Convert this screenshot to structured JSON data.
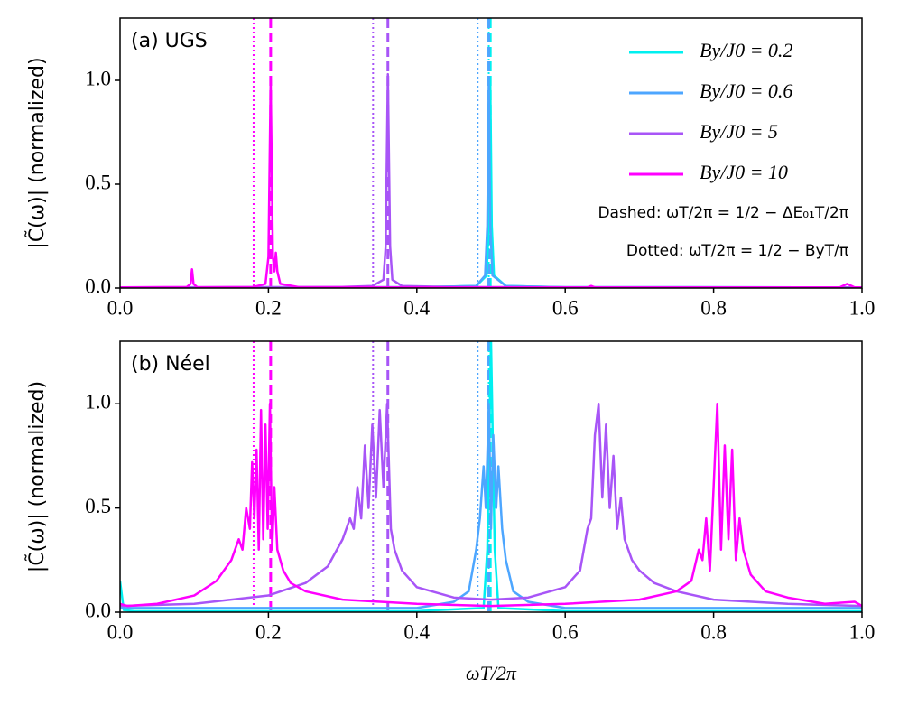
{
  "chart_data": [
    {
      "type": "line",
      "panel_label": "(a) UGS",
      "ylabel": "|C̃(ω)| (normalized)",
      "xlim": [
        0,
        1
      ],
      "ylim": [
        0,
        1.3
      ],
      "xticks": [
        {
          "value": 0,
          "label": "0.0"
        },
        0.2,
        0.4,
        0.6,
        0.8,
        {
          "value": 1,
          "label": "1.0"
        }
      ],
      "yticks": [
        {
          "value": 0,
          "label": "0.0"
        },
        0.5,
        {
          "value": 1,
          "label": "1.0"
        }
      ],
      "legend": "upper right",
      "annotations": [
        "Dashed: ωT/2π = 1/2 − ΔE₀₁T/2π",
        "Dotted: ωT/2π = 1/2 − ByT/π"
      ],
      "series": [
        {
          "name": "By/J0 = 0.2",
          "color": "#00f0f0",
          "x": [
            0,
            0.4,
            0.48,
            0.494,
            0.497,
            0.499,
            0.501,
            0.504,
            0.52,
            0.6,
            1.0
          ],
          "values": [
            0.003,
            0.004,
            0.01,
            0.06,
            0.3,
            1.0,
            0.3,
            0.06,
            0.01,
            0.004,
            0.003
          ]
        },
        {
          "name": "By/J0 = 0.6",
          "color": "#4da6ff",
          "x": [
            0,
            0.4,
            0.48,
            0.492,
            0.495,
            0.497,
            0.499,
            0.502,
            0.52,
            0.6,
            1.0
          ],
          "values": [
            0.003,
            0.004,
            0.01,
            0.06,
            0.3,
            1.0,
            0.3,
            0.06,
            0.01,
            0.004,
            0.003
          ]
        },
        {
          "name": "By/J0 = 5",
          "color": "#a855f7",
          "x": [
            0,
            0.1,
            0.3,
            0.34,
            0.355,
            0.358,
            0.361,
            0.364,
            0.367,
            0.38,
            0.45,
            0.6,
            1.0
          ],
          "values": [
            0.003,
            0.004,
            0.005,
            0.01,
            0.04,
            0.2,
            1.03,
            0.2,
            0.04,
            0.01,
            0.005,
            0.004,
            0.003
          ]
        },
        {
          "name": "By/J0 = 10",
          "color": "#ff00ff",
          "x": [
            0,
            0.09,
            0.095,
            0.097,
            0.099,
            0.104,
            0.18,
            0.196,
            0.2,
            0.203,
            0.206,
            0.208,
            0.21,
            0.212,
            0.216,
            0.24,
            0.4,
            0.63,
            0.635,
            0.64,
            0.97,
            0.98,
            0.99,
            1.0
          ],
          "values": [
            0.003,
            0.005,
            0.02,
            0.09,
            0.02,
            0.004,
            0.005,
            0.02,
            0.15,
            1.0,
            0.15,
            0.08,
            0.17,
            0.08,
            0.02,
            0.005,
            0.003,
            0.003,
            0.01,
            0.003,
            0.003,
            0.02,
            0.003,
            0.003
          ]
        }
      ],
      "reference_lines": [
        {
          "x": 0.499,
          "style": "dashed",
          "color": "#00f0f0"
        },
        {
          "x": 0.497,
          "style": "dotted",
          "color": "#00f0f0"
        },
        {
          "x": 0.497,
          "style": "dashed",
          "color": "#4da6ff"
        },
        {
          "x": 0.482,
          "style": "dotted",
          "color": "#4da6ff"
        },
        {
          "x": 0.361,
          "style": "dashed",
          "color": "#a855f7"
        },
        {
          "x": 0.341,
          "style": "dotted",
          "color": "#a855f7"
        },
        {
          "x": 0.203,
          "style": "dashed",
          "color": "#ff00ff"
        },
        {
          "x": 0.18,
          "style": "dotted",
          "color": "#ff00ff"
        }
      ]
    },
    {
      "type": "line",
      "panel_label": "(b) Néel",
      "ylabel": "|C̃(ω)| (normalized)",
      "xlabel": "ωT/2π",
      "xlim": [
        0,
        1
      ],
      "ylim": [
        0,
        1.3
      ],
      "xticks": [
        {
          "value": 0,
          "label": "0.0"
        },
        0.2,
        0.4,
        0.6,
        0.8,
        {
          "value": 1,
          "label": "1.0"
        }
      ],
      "yticks": [
        {
          "value": 0,
          "label": "0.0"
        },
        0.5,
        {
          "value": 1,
          "label": "1.0"
        }
      ],
      "series": [
        {
          "color": "#00f0f0",
          "x": [
            0,
            0.005,
            0.02,
            0.4,
            0.49,
            0.495,
            0.5,
            0.505,
            0.51,
            0.6,
            1.0
          ],
          "values": [
            0.15,
            0.01,
            0.005,
            0.005,
            0.02,
            0.3,
            1.3,
            0.3,
            0.02,
            0.005,
            0.005
          ]
        },
        {
          "color": "#4da6ff",
          "x": [
            0,
            0.2,
            0.4,
            0.45,
            0.47,
            0.48,
            0.485,
            0.49,
            0.493,
            0.497,
            0.5,
            0.503,
            0.507,
            0.51,
            0.515,
            0.52,
            0.53,
            0.55,
            0.6,
            0.8,
            1.0
          ],
          "values": [
            0.02,
            0.02,
            0.02,
            0.05,
            0.1,
            0.3,
            0.45,
            0.7,
            0.5,
            1.0,
            0.4,
            0.85,
            0.5,
            0.7,
            0.4,
            0.25,
            0.1,
            0.05,
            0.02,
            0.02,
            0.02
          ]
        },
        {
          "color": "#a855f7",
          "x": [
            0,
            0.1,
            0.2,
            0.25,
            0.28,
            0.3,
            0.31,
            0.315,
            0.32,
            0.325,
            0.33,
            0.335,
            0.34,
            0.345,
            0.35,
            0.355,
            0.36,
            0.365,
            0.37,
            0.38,
            0.4,
            0.45,
            0.5,
            0.55,
            0.6,
            0.62,
            0.63,
            0.635,
            0.64,
            0.645,
            0.65,
            0.655,
            0.66,
            0.665,
            0.67,
            0.675,
            0.68,
            0.69,
            0.7,
            0.72,
            0.75,
            0.8,
            0.9,
            1.0
          ],
          "values": [
            0.03,
            0.04,
            0.08,
            0.14,
            0.22,
            0.35,
            0.45,
            0.4,
            0.6,
            0.45,
            0.8,
            0.5,
            0.9,
            0.55,
            0.97,
            0.6,
            1.0,
            0.4,
            0.3,
            0.2,
            0.12,
            0.07,
            0.06,
            0.07,
            0.12,
            0.2,
            0.4,
            0.45,
            0.85,
            1.0,
            0.55,
            0.9,
            0.5,
            0.75,
            0.4,
            0.55,
            0.35,
            0.25,
            0.2,
            0.14,
            0.1,
            0.06,
            0.04,
            0.03
          ]
        },
        {
          "color": "#ff00ff",
          "x": [
            0,
            0.01,
            0.05,
            0.1,
            0.13,
            0.15,
            0.16,
            0.165,
            0.17,
            0.175,
            0.178,
            0.181,
            0.184,
            0.187,
            0.19,
            0.193,
            0.196,
            0.199,
            0.202,
            0.205,
            0.208,
            0.212,
            0.22,
            0.23,
            0.25,
            0.3,
            0.4,
            0.5,
            0.6,
            0.7,
            0.75,
            0.77,
            0.78,
            0.785,
            0.79,
            0.795,
            0.8,
            0.805,
            0.81,
            0.815,
            0.82,
            0.825,
            0.83,
            0.835,
            0.84,
            0.85,
            0.87,
            0.9,
            0.95,
            0.99,
            1.0
          ],
          "values": [
            0.04,
            0.03,
            0.04,
            0.08,
            0.15,
            0.25,
            0.35,
            0.3,
            0.5,
            0.4,
            0.72,
            0.45,
            0.78,
            0.3,
            0.97,
            0.35,
            0.9,
            0.4,
            1.0,
            0.3,
            0.6,
            0.3,
            0.2,
            0.14,
            0.1,
            0.06,
            0.04,
            0.03,
            0.04,
            0.06,
            0.1,
            0.15,
            0.3,
            0.25,
            0.45,
            0.2,
            0.6,
            1.0,
            0.3,
            0.8,
            0.35,
            0.78,
            0.25,
            0.45,
            0.3,
            0.18,
            0.1,
            0.07,
            0.04,
            0.05,
            0.03
          ]
        }
      ],
      "reference_lines": [
        {
          "x": 0.499,
          "style": "dashed",
          "color": "#00f0f0"
        },
        {
          "x": 0.497,
          "style": "dotted",
          "color": "#00f0f0"
        },
        {
          "x": 0.497,
          "style": "dashed",
          "color": "#4da6ff"
        },
        {
          "x": 0.482,
          "style": "dotted",
          "color": "#4da6ff"
        },
        {
          "x": 0.361,
          "style": "dashed",
          "color": "#a855f7"
        },
        {
          "x": 0.341,
          "style": "dotted",
          "color": "#a855f7"
        },
        {
          "x": 0.203,
          "style": "dashed",
          "color": "#ff00ff"
        },
        {
          "x": 0.18,
          "style": "dotted",
          "color": "#ff00ff"
        }
      ]
    }
  ]
}
